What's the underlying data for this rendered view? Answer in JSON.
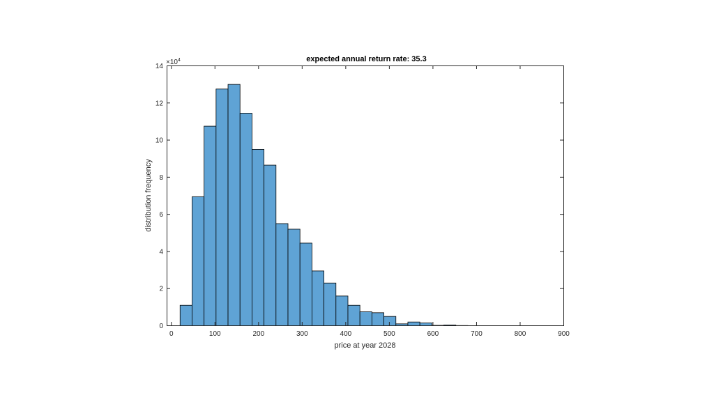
{
  "chart_data": {
    "type": "bar",
    "title": "expected annual return rate: 35.3",
    "xlabel": "price at year 2028",
    "ylabel": "distribution frequency",
    "y_exponent_label": "×10",
    "y_exponent_power": "4",
    "xlim": [
      -10,
      900
    ],
    "ylim": [
      0,
      14
    ],
    "x_ticks": [
      0,
      100,
      200,
      300,
      400,
      500,
      600,
      700,
      800,
      900
    ],
    "y_ticks": [
      0,
      2,
      4,
      6,
      8,
      10,
      12,
      14
    ],
    "bin_width": 27.5,
    "bins": [
      {
        "start": 20,
        "value": 1.1
      },
      {
        "start": 47.5,
        "value": 6.95
      },
      {
        "start": 75,
        "value": 10.75
      },
      {
        "start": 102.5,
        "value": 12.75
      },
      {
        "start": 130,
        "value": 13.0
      },
      {
        "start": 157.5,
        "value": 11.45
      },
      {
        "start": 185,
        "value": 9.5
      },
      {
        "start": 212.5,
        "value": 8.65
      },
      {
        "start": 240,
        "value": 5.5
      },
      {
        "start": 267.5,
        "value": 5.2
      },
      {
        "start": 295,
        "value": 4.45
      },
      {
        "start": 322.5,
        "value": 2.95
      },
      {
        "start": 350,
        "value": 2.3
      },
      {
        "start": 377.5,
        "value": 1.6
      },
      {
        "start": 405,
        "value": 1.1
      },
      {
        "start": 432.5,
        "value": 0.75
      },
      {
        "start": 460,
        "value": 0.7
      },
      {
        "start": 487.5,
        "value": 0.5
      },
      {
        "start": 515,
        "value": 0.1
      },
      {
        "start": 542.5,
        "value": 0.2
      },
      {
        "start": 570,
        "value": 0.15
      },
      {
        "start": 597.5,
        "value": 0.02
      },
      {
        "start": 625,
        "value": 0.04
      },
      {
        "start": 652.5,
        "value": 0.01
      }
    ],
    "grid": false,
    "bar_fill": "#5fa3d5",
    "bar_edge": "#000000"
  }
}
